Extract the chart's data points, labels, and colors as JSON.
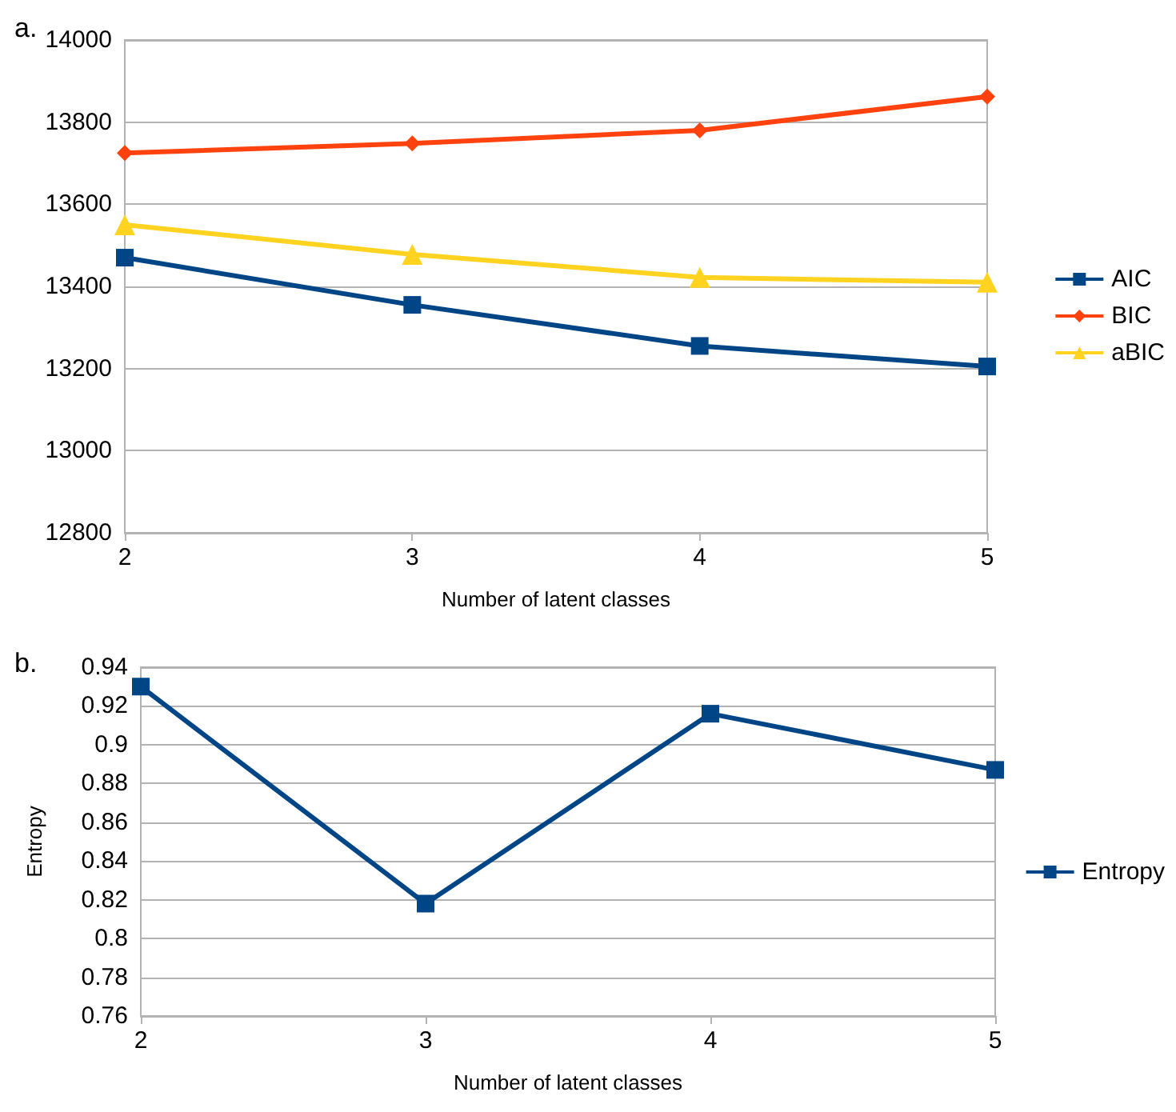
{
  "chart_data": [
    {
      "type": "line",
      "title": "a.",
      "xlabel": "Number of latent classes",
      "x": [
        2,
        3,
        4,
        5
      ],
      "series": [
        {
          "name": "AIC",
          "color": "#004586",
          "marker": "square",
          "values": [
            13470,
            13355,
            13255,
            13205
          ]
        },
        {
          "name": "BIC",
          "color": "#ff420e",
          "marker": "diamond",
          "values": [
            13725,
            13748,
            13780,
            13862
          ]
        },
        {
          "name": "aBIC",
          "color": "#ffd320",
          "marker": "triangle",
          "values": [
            13550,
            13478,
            13422,
            13410
          ]
        }
      ],
      "xlim": [
        2,
        5
      ],
      "xticks": [
        2,
        3,
        4,
        5
      ],
      "ylim": [
        12800,
        14000
      ],
      "yticks": [
        12800,
        13000,
        13200,
        13400,
        13600,
        13800,
        14000
      ],
      "grid": "y",
      "legend": "right"
    },
    {
      "type": "line",
      "title": "b.",
      "xlabel": "Number of latent classes",
      "ylabel": "Entropy",
      "x": [
        2,
        3,
        4,
        5
      ],
      "series": [
        {
          "name": "Entropy",
          "color": "#004586",
          "marker": "square",
          "values": [
            0.93,
            0.818,
            0.916,
            0.887
          ]
        }
      ],
      "xlim": [
        2,
        5
      ],
      "xticks": [
        2,
        3,
        4,
        5
      ],
      "ylim": [
        0.76,
        0.94
      ],
      "yticks": [
        0.76,
        0.78,
        0.8,
        0.82,
        0.84,
        0.86,
        0.88,
        0.9,
        0.92,
        0.94
      ],
      "grid": "y",
      "legend": "right"
    }
  ]
}
